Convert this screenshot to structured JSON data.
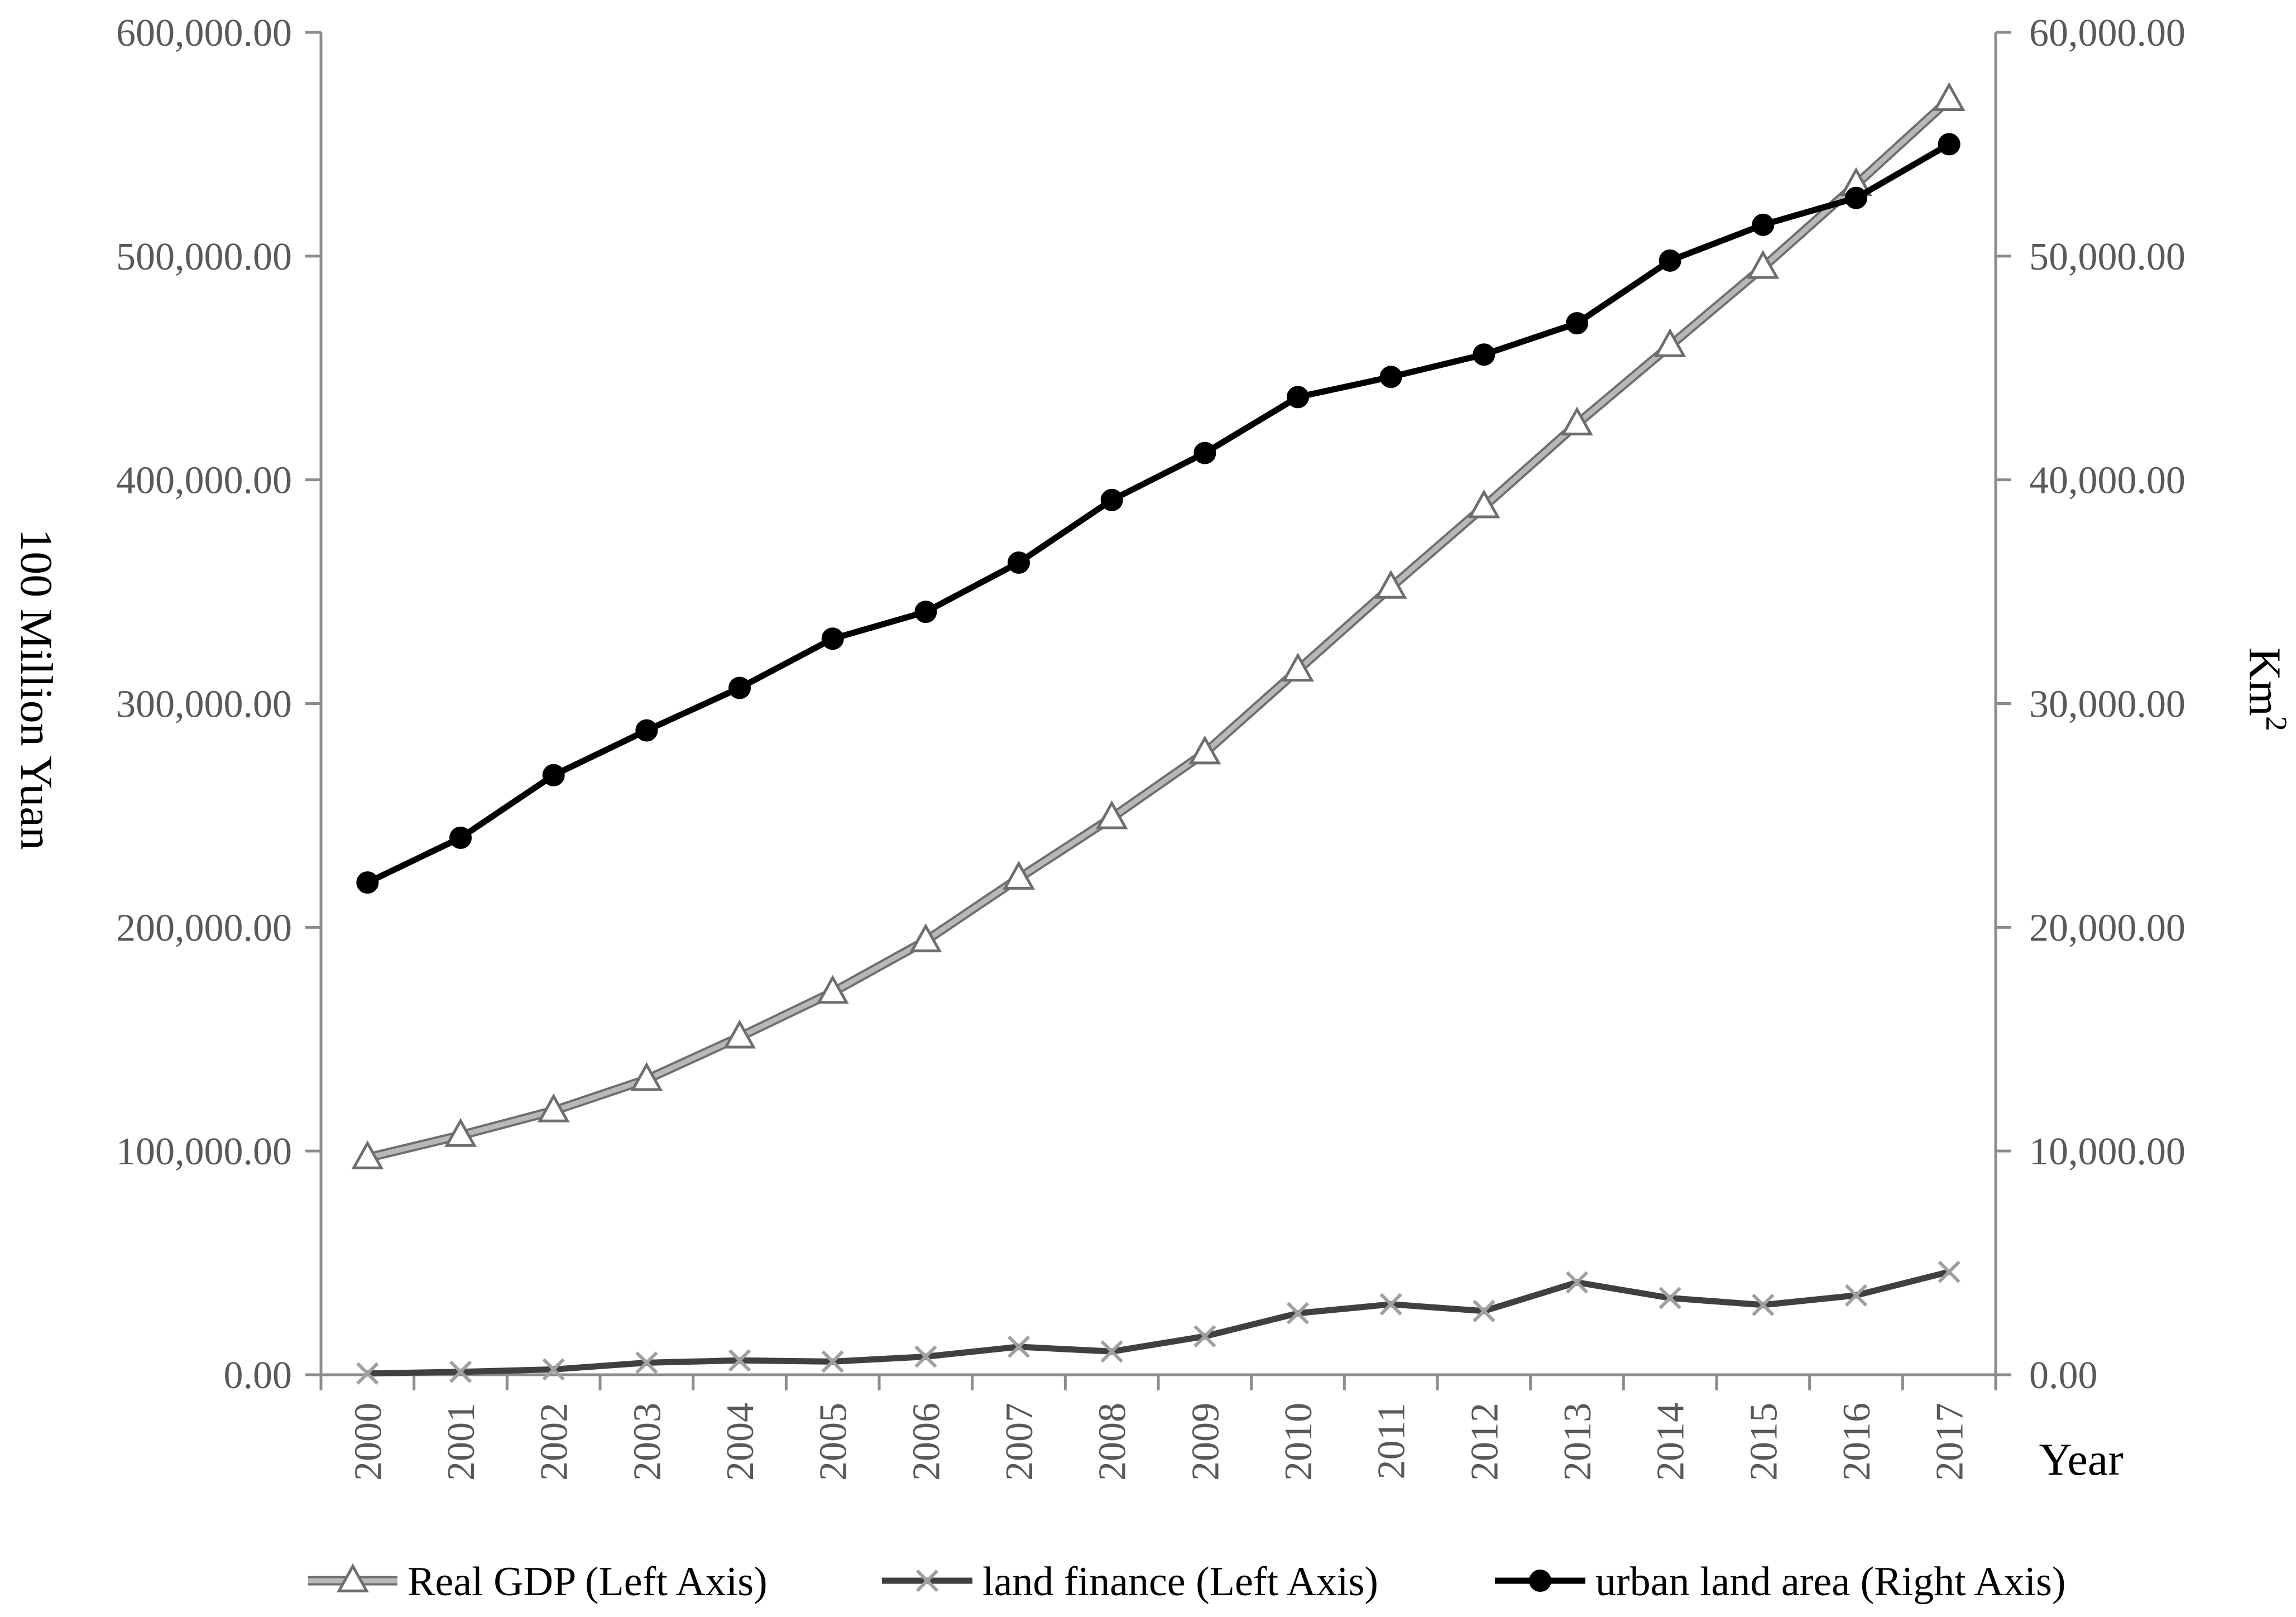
{
  "chart_data": {
    "type": "line",
    "categories": [
      "2000",
      "2001",
      "2002",
      "2003",
      "2004",
      "2005",
      "2006",
      "2007",
      "2008",
      "2009",
      "2010",
      "2011",
      "2012",
      "2013",
      "2014",
      "2015",
      "2016",
      "2017"
    ],
    "xlabel": "Year",
    "ylabel_left": "100 Million Yuan",
    "ylabel_right": "Km",
    "ylabel_right_superscript": "2",
    "ylim_left": [
      0,
      600000
    ],
    "ylim_right": [
      0,
      60000
    ],
    "yticks_left": [
      "0.00",
      "100,000.00",
      "200,000.00",
      "300,000.00",
      "400,000.00",
      "500,000.00",
      "600,000.00"
    ],
    "yticks_right": [
      "0.00",
      "10,000.00",
      "20,000.00",
      "30,000.00",
      "40,000.00",
      "50,000.00",
      "60,000.00"
    ],
    "grid": false,
    "legend_position": "bottom",
    "series": [
      {
        "name": "Real GDP (Left Axis)",
        "axis": "left",
        "marker": "triangle",
        "color": "#8c8c8c",
        "values": [
          97000,
          107000,
          118000,
          132000,
          151000,
          171000,
          194000,
          222000,
          249000,
          278000,
          315000,
          352000,
          388000,
          425000,
          460000,
          495000,
          532000,
          570000
        ]
      },
      {
        "name": "land finance (Left Axis)",
        "axis": "left",
        "marker": "x",
        "color": "#404040",
        "values": [
          600,
          1300,
          2400,
          5400,
          6400,
          5900,
          8100,
          12500,
          10400,
          17200,
          27500,
          31500,
          28500,
          41300,
          34300,
          31200,
          35500,
          46000
        ]
      },
      {
        "name": "urban land area (Right Axis)",
        "axis": "right",
        "marker": "circle",
        "color": "#000000",
        "values": [
          22000,
          24000,
          26800,
          28800,
          30700,
          32900,
          34100,
          36300,
          39100,
          41200,
          43700,
          44600,
          45600,
          47000,
          49800,
          51400,
          52600,
          55000
        ]
      }
    ]
  }
}
